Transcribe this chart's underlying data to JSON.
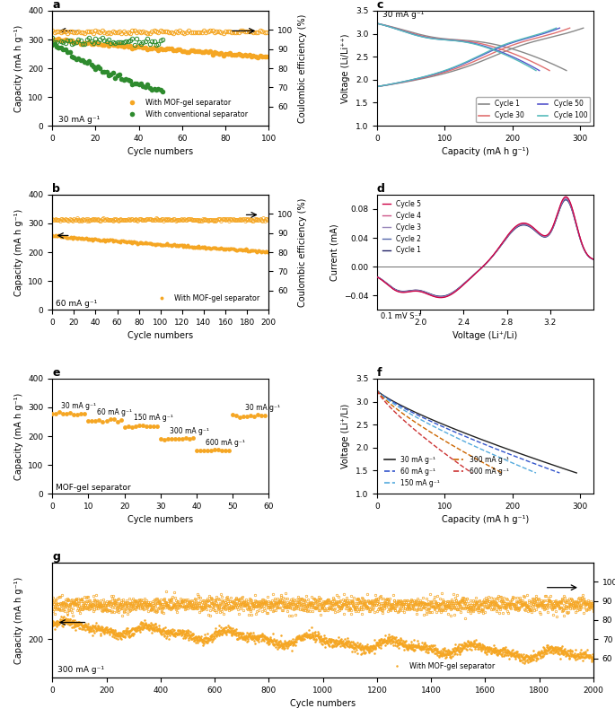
{
  "panel_a": {
    "title": "a",
    "xlabel": "Cycle numbers",
    "ylabel": "Capacity (mA h g⁻¹)",
    "ylabel2": "Coulombic efficiency (%)",
    "current_label": "30 mA g⁻¹",
    "xlim": [
      0,
      100
    ],
    "ylim": [
      0,
      400
    ],
    "ylim2": [
      50,
      110
    ],
    "yticks": [
      0,
      100,
      200,
      300,
      400
    ],
    "yticks2": [
      60,
      70,
      80,
      90,
      100
    ],
    "xticks": [
      0,
      20,
      40,
      60,
      80,
      100
    ],
    "orange_capacity_start": 300,
    "orange_capacity_end": 240,
    "orange_n": 100,
    "green_capacity_start": 285,
    "green_capacity_end": 120,
    "green_n": 52,
    "orange_ce_value": 99,
    "orange_ce_scatter": 0.4,
    "green_ce_value": 94,
    "green_ce_scatter": 1.2,
    "legend": [
      "With MOF-gel separator",
      "With conventional separator"
    ],
    "orange_color": "#f5a623",
    "green_color": "#2e8b2e"
  },
  "panel_b": {
    "title": "b",
    "xlabel": "Cycle numbers",
    "ylabel": "Capacity (mA h g⁻¹)",
    "ylabel2": "Coulombic efficiency (%)",
    "current_label": "60 mA g⁻¹",
    "xlim": [
      0,
      200
    ],
    "ylim": [
      0,
      400
    ],
    "ylim2": [
      50,
      110
    ],
    "yticks": [
      0,
      100,
      200,
      300,
      400
    ],
    "yticks2": [
      60,
      70,
      80,
      90,
      100
    ],
    "xticks": [
      0,
      20,
      40,
      60,
      80,
      100,
      120,
      140,
      160,
      180,
      200
    ],
    "orange_capacity_start": 257,
    "orange_capacity_end": 202,
    "orange_n": 200,
    "orange_ce_value": 97,
    "orange_ce_scatter": 0.3,
    "legend": [
      "With MOF-gel separator"
    ],
    "orange_color": "#f5a623"
  },
  "panel_c": {
    "title": "c",
    "xlabel": "Capacity (mA h g⁻¹)",
    "ylabel": "Voltage (Li/Li⁺⁺)",
    "current_label": "30 mA g⁻¹",
    "xlim": [
      0,
      320
    ],
    "ylim": [
      1.0,
      3.5
    ],
    "yticks": [
      1.0,
      1.5,
      2.0,
      2.5,
      3.0,
      3.5
    ],
    "xticks": [
      0,
      100,
      200,
      300
    ],
    "cycles": [
      "Cycle 1",
      "Cycle 30",
      "Cycle 50",
      "Cycle 100"
    ],
    "colors": [
      "#888888",
      "#e07070",
      "#5555cc",
      "#55bbbb"
    ]
  },
  "panel_d": {
    "title": "d",
    "xlabel": "Voltage (Li⁺/Li)",
    "ylabel": "Current (mA)",
    "scan_label": "0.1 mV S⁻¹",
    "xlim": [
      1.6,
      3.6
    ],
    "ylim": [
      -0.06,
      0.1
    ],
    "yticks": [
      -0.04,
      0,
      0.04,
      0.08
    ],
    "xticks": [
      2.0,
      2.4,
      2.8,
      3.2
    ],
    "cycles": [
      "Cycle 5",
      "Cycle 4",
      "Cycle 3",
      "Cycle 2",
      "Cycle 1"
    ],
    "colors": [
      "#cc0044",
      "#cc6699",
      "#9999cc",
      "#6666bb",
      "#222266"
    ]
  },
  "panel_e": {
    "title": "e",
    "xlabel": "Cycle numbers",
    "ylabel": "Capacity (mA h g⁻¹)",
    "current_label": "MOF-gel separator",
    "xlim": [
      0,
      60
    ],
    "ylim": [
      0,
      400
    ],
    "yticks": [
      0,
      100,
      200,
      300,
      400
    ],
    "xticks": [
      0,
      10,
      20,
      30,
      40,
      50,
      60
    ],
    "rates": [
      "30 mA g⁻¹",
      "60 mA g⁻¹",
      "150 mA g⁻¹",
      "300 mA g⁻¹",
      "600 mA g⁻¹",
      "30 mA g⁻¹"
    ],
    "rate_capacities": [
      278,
      255,
      235,
      190,
      150,
      270
    ],
    "orange_color": "#f5a623"
  },
  "panel_f": {
    "title": "f",
    "xlabel": "Capacity (mA h g⁻¹)",
    "ylabel": "Voltage (Li⁺/Li)",
    "xlim": [
      0,
      320
    ],
    "ylim": [
      1.0,
      3.5
    ],
    "yticks": [
      1.0,
      1.5,
      2.0,
      2.5,
      3.0,
      3.5
    ],
    "xticks": [
      0,
      100,
      200,
      300
    ],
    "rates": [
      "30 mA g⁻¹",
      "60 mA g⁻¹",
      "150 mA g⁻¹",
      "300 mA g⁻¹",
      "600 mA g⁻¹"
    ],
    "colors": [
      "#222222",
      "#3355cc",
      "#55aadd",
      "#cc6600",
      "#cc3333"
    ],
    "linestyles": [
      "-",
      "--",
      "--",
      "--",
      "--"
    ],
    "cap_ends": [
      295,
      270,
      235,
      185,
      140
    ]
  },
  "panel_g": {
    "title": "g",
    "xlabel": "Cycle numbers",
    "ylabel": "Capacity (mA h g⁻¹)",
    "ylabel2": "Coulombic efficiency (%)",
    "current_label": "300 mA g⁻¹",
    "xlim": [
      0,
      2000
    ],
    "ylim": [
      150,
      300
    ],
    "ylim2": [
      50,
      110
    ],
    "yticks": [
      200
    ],
    "yticks2": [
      60,
      70,
      80,
      90,
      100
    ],
    "xticks": [
      0,
      200,
      400,
      600,
      800,
      1000,
      1200,
      1400,
      1600,
      1800,
      2000
    ],
    "orange_capacity_start": 218,
    "orange_capacity_end": 178,
    "orange_n": 2000,
    "orange_ce_value": 88,
    "orange_ce_scatter": 2.0,
    "legend": [
      "With MOF-gel separator"
    ],
    "orange_color": "#f5a623"
  },
  "orange_color": "#f5a623",
  "green_color": "#2e8b2e",
  "bg_color": "#ffffff"
}
